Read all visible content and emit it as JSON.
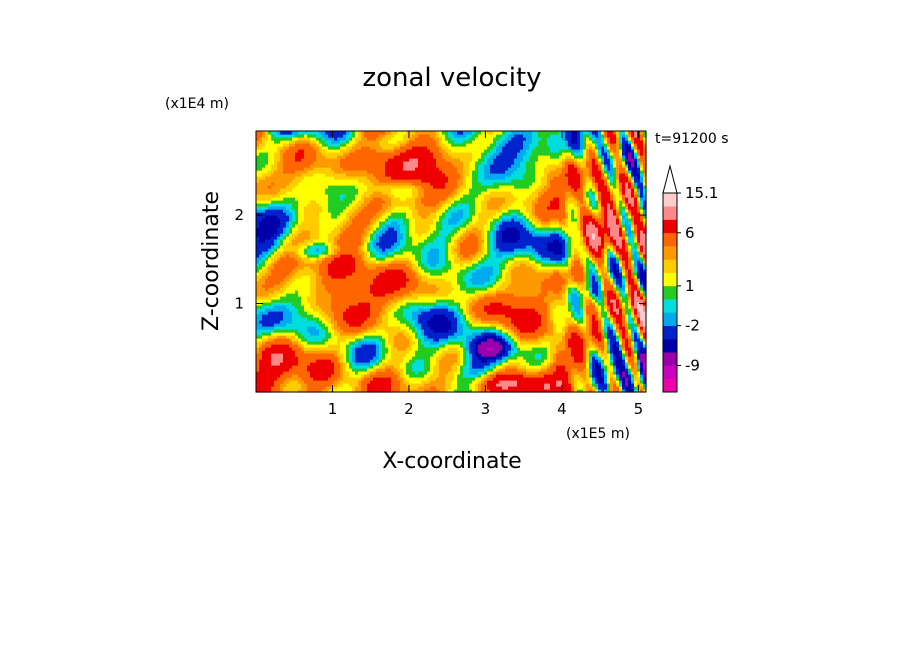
{
  "chart_data": {
    "type": "heatmap",
    "title": "zonal velocity",
    "xlabel": "X-coordinate",
    "ylabel": "Z-coordinate",
    "x_unit": "(x1E5 m)",
    "y_unit": "(x1E4 m)",
    "time_label": "t=91200 s",
    "xlim": [
      0,
      5.1
    ],
    "ylim": [
      0,
      2.95
    ],
    "x_ticks": [
      "1",
      "2",
      "3",
      "4",
      "5"
    ],
    "x_tick_values": [
      1,
      2,
      3,
      4,
      5
    ],
    "y_ticks": [
      "1",
      "2"
    ],
    "y_tick_values": [
      1,
      2
    ],
    "grid": false,
    "colorbar": {
      "labels": [
        "15.1",
        "6",
        "1",
        "-2",
        "-9"
      ],
      "label_values": [
        15.1,
        6,
        1,
        -2,
        -9
      ],
      "extend": "max",
      "levels": [
        -12,
        -9,
        -6,
        -4,
        -2,
        -1,
        0,
        1,
        2,
        3,
        4,
        6,
        9,
        12,
        15.1
      ],
      "colors": [
        "#ee00aa",
        "#cc00bb",
        "#9900aa",
        "#0000aa",
        "#0022cc",
        "#00aaee",
        "#00dddd",
        "#22cc22",
        "#ffff00",
        "#ffcc00",
        "#ff9900",
        "#ff6600",
        "#ee0000",
        "#ff8888",
        "#ffcccc"
      ]
    }
  }
}
